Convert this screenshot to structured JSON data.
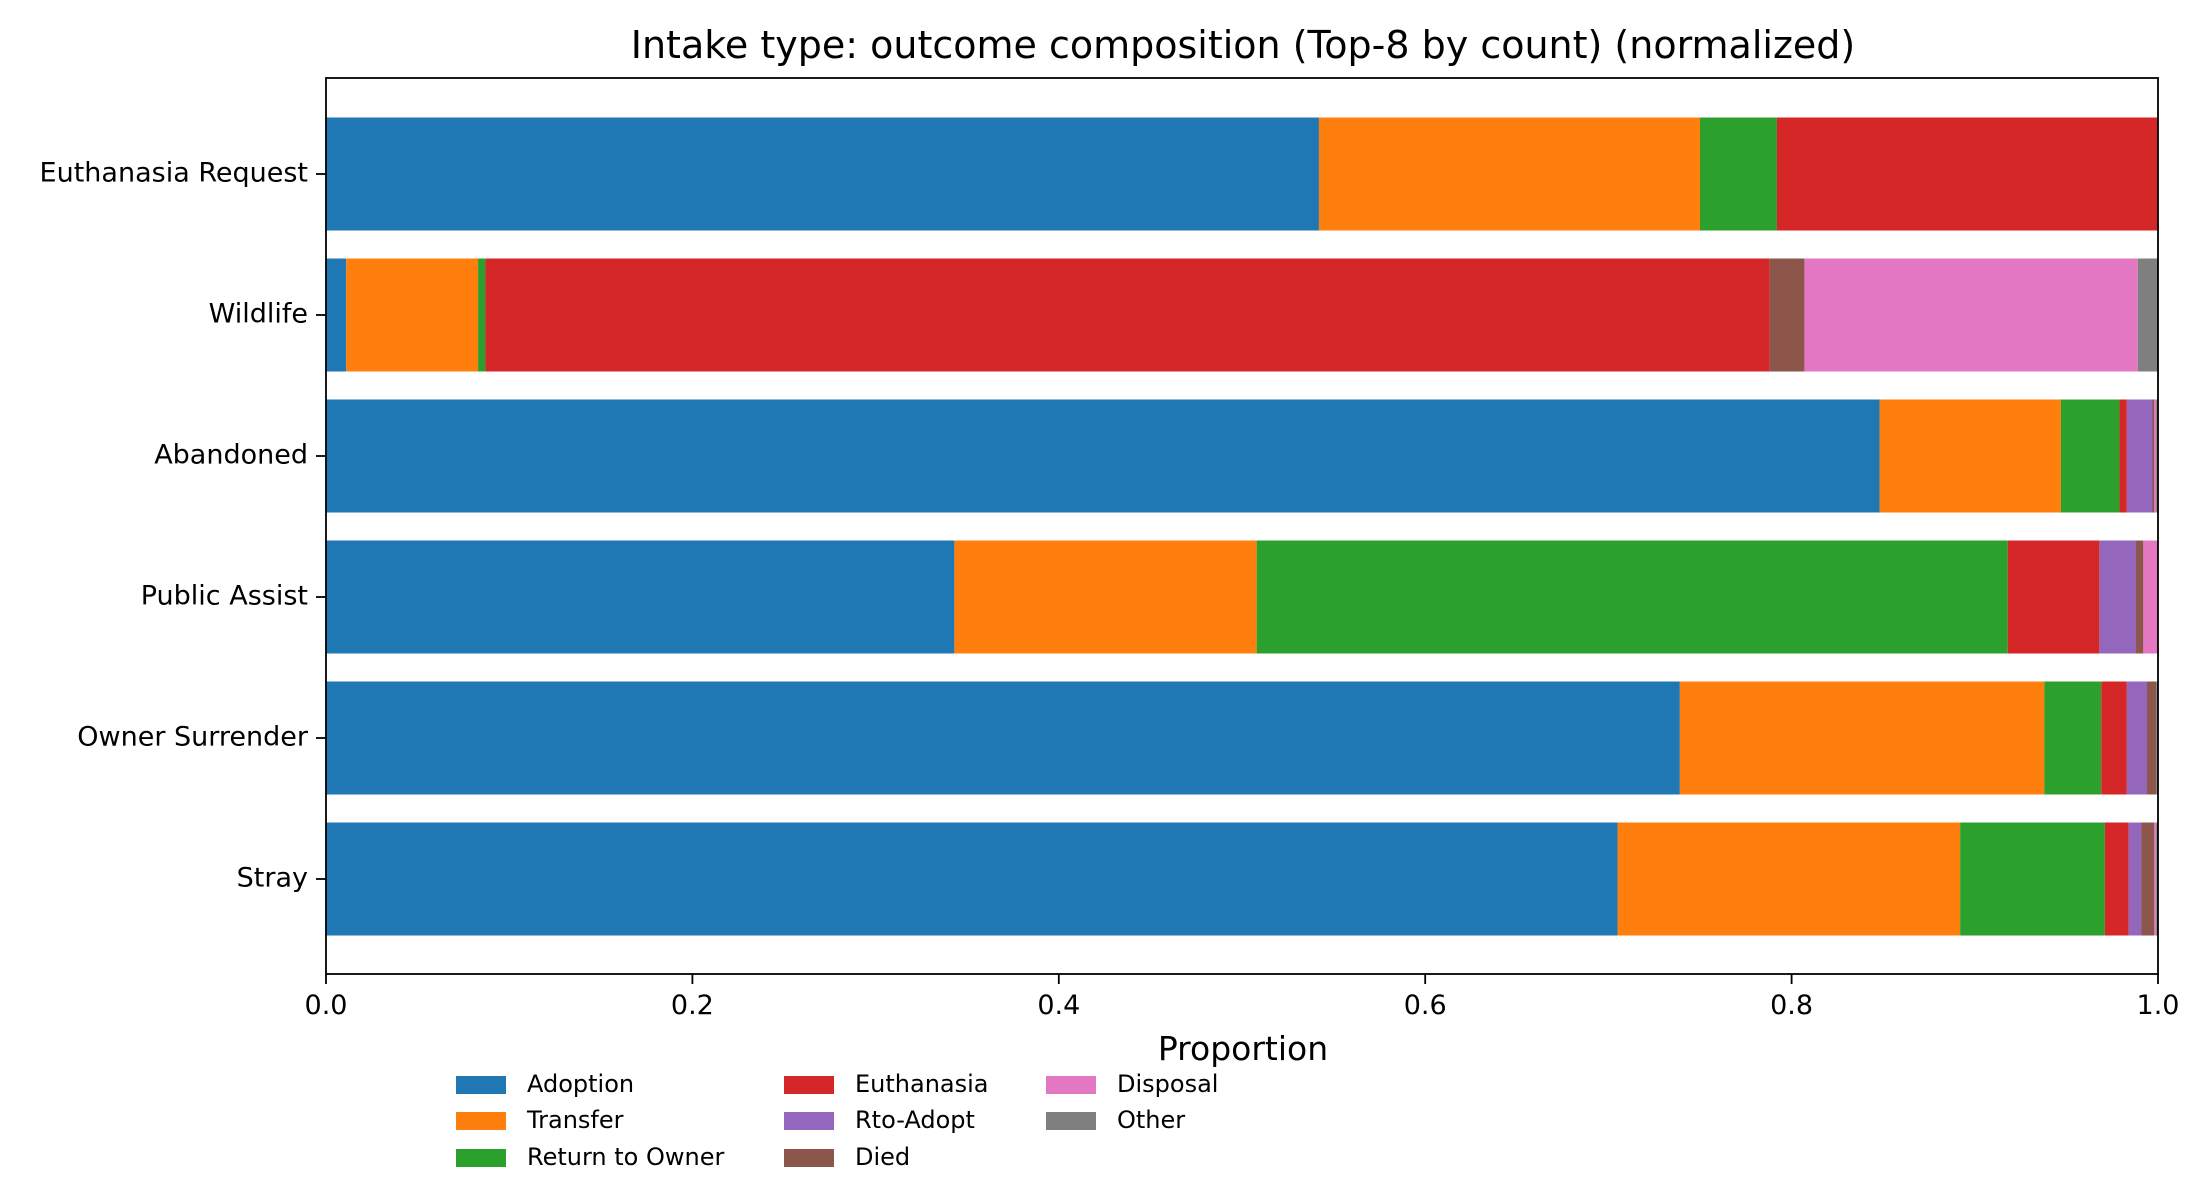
{
  "chart_data": {
    "type": "bar",
    "orientation": "horizontal",
    "stacked": true,
    "title": "Intake type: outcome composition (Top-8 by count) (normalized)",
    "xlabel": "Proportion",
    "ylabel": "",
    "xlim": [
      0.0,
      1.0
    ],
    "xticks": [
      "0.0",
      "0.2",
      "0.4",
      "0.6",
      "0.8",
      "1.0"
    ],
    "grid": false,
    "legend_position": "bottom-left",
    "categories": [
      "Euthanasia Request",
      "Wildlife",
      "Abandoned",
      "Public Assist",
      "Owner Surrender",
      "Stray"
    ],
    "series": [
      {
        "name": "Adoption",
        "color": "#1f77b4",
        "values": [
          0.542,
          0.011,
          0.848,
          0.343,
          0.739,
          0.705
        ]
      },
      {
        "name": "Transfer",
        "color": "#ff7f0e",
        "values": [
          0.208,
          0.072,
          0.099,
          0.165,
          0.199,
          0.187
        ]
      },
      {
        "name": "Return to Owner",
        "color": "#2ca02c",
        "values": [
          0.042,
          0.004,
          0.032,
          0.41,
          0.031,
          0.079
        ]
      },
      {
        "name": "Euthanasia",
        "color": "#d62728",
        "values": [
          0.208,
          0.701,
          0.004,
          0.05,
          0.014,
          0.013
        ]
      },
      {
        "name": "Rto-Adopt",
        "color": "#9467bd",
        "values": [
          0.0,
          0.0,
          0.014,
          0.02,
          0.011,
          0.007
        ]
      },
      {
        "name": "Died",
        "color": "#8c564b",
        "values": [
          0.0,
          0.019,
          0.001,
          0.004,
          0.005,
          0.007
        ]
      },
      {
        "name": "Disposal",
        "color": "#e377c2",
        "values": [
          0.0,
          0.182,
          0.001,
          0.008,
          0.0,
          0.001
        ]
      },
      {
        "name": "Other",
        "color": "#7f7f7f",
        "values": [
          0.0,
          0.011,
          0.001,
          0.0,
          0.001,
          0.001
        ]
      }
    ]
  }
}
